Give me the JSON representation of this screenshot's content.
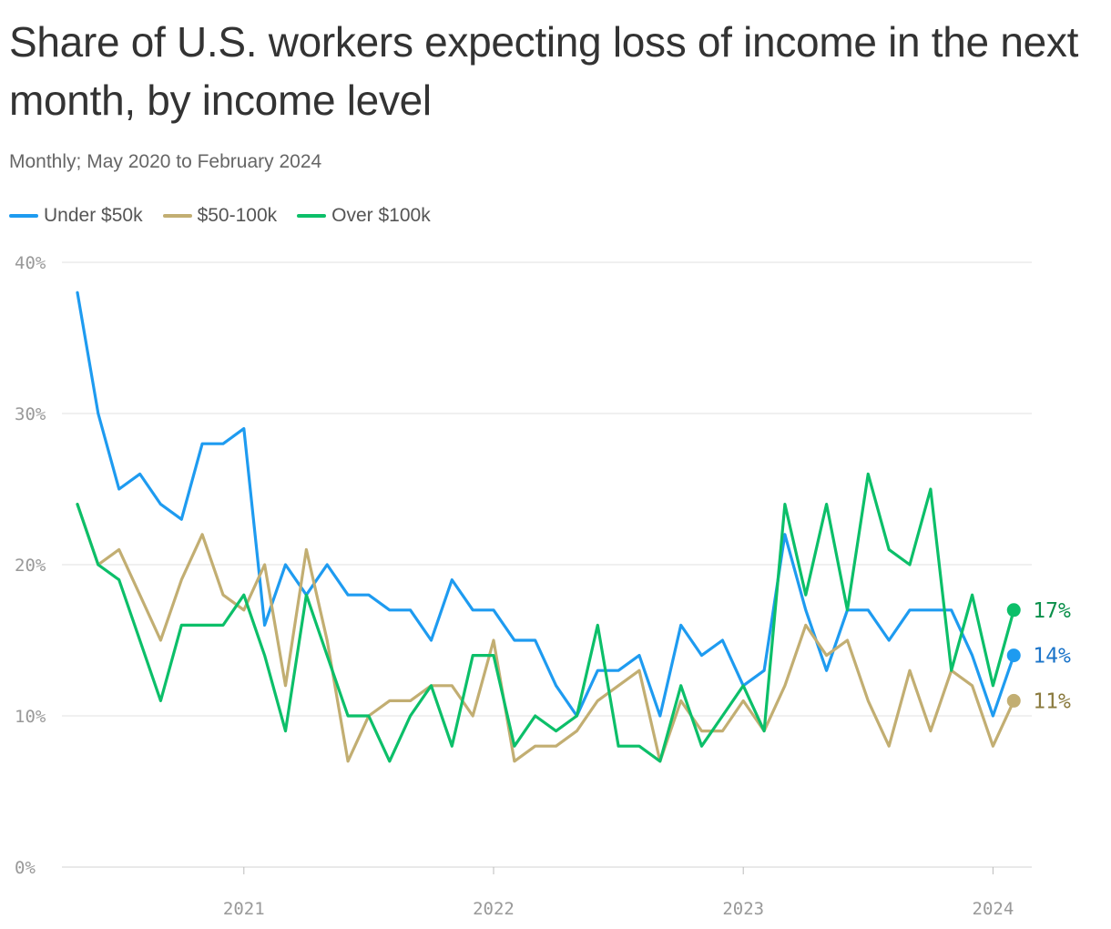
{
  "header": {
    "title": "Share of U.S. workers expecting loss of income in the next month, by income level",
    "subtitle": "Monthly; May 2020 to February 2024"
  },
  "colors": {
    "under_50k": "#1e9bf0",
    "50_100k": "#c2ae72",
    "over_100k": "#0cbf69",
    "label_under_50k": "#1b74c9",
    "label_50_100k": "#8a7a3e",
    "label_over_100k": "#0a8f4a",
    "grid": "#e2e2e2",
    "tick": "#999999"
  },
  "chart_data": {
    "type": "line",
    "title": "Share of U.S. workers expecting loss of income in the next month, by income level",
    "subtitle": "Monthly; May 2020 to February 2024",
    "xlabel": "",
    "ylabel": "",
    "x_range": [
      "2020-05",
      "2024-02"
    ],
    "ylim": [
      0,
      40
    ],
    "y_ticks": [
      0,
      10,
      20,
      30,
      40
    ],
    "y_tick_labels": [
      "0%",
      "10%",
      "20%",
      "30%",
      "40%"
    ],
    "x_ticks": [
      "2021",
      "2022",
      "2023",
      "2024"
    ],
    "grid": true,
    "legend_placement": "top-left",
    "x": [
      "2020-05",
      "2020-06",
      "2020-07",
      "2020-08",
      "2020-09",
      "2020-10",
      "2020-11",
      "2020-12",
      "2021-01",
      "2021-02",
      "2021-03",
      "2021-04",
      "2021-05",
      "2021-06",
      "2021-07",
      "2021-08",
      "2021-09",
      "2021-10",
      "2021-11",
      "2021-12",
      "2022-01",
      "2022-02",
      "2022-03",
      "2022-04",
      "2022-05",
      "2022-06",
      "2022-07",
      "2022-08",
      "2022-09",
      "2022-10",
      "2022-11",
      "2022-12",
      "2023-01",
      "2023-02",
      "2023-03",
      "2023-04",
      "2023-05",
      "2023-06",
      "2023-07",
      "2023-08",
      "2023-09",
      "2023-10",
      "2023-11",
      "2023-12",
      "2024-01",
      "2024-02"
    ],
    "series": [
      {
        "name": "Under $50k",
        "key": "under_50k",
        "end_label": "14%",
        "values": [
          38,
          30,
          25,
          26,
          24,
          23,
          28,
          28,
          29,
          16,
          20,
          18,
          20,
          18,
          18,
          17,
          17,
          15,
          19,
          17,
          17,
          15,
          15,
          12,
          10,
          13,
          13,
          14,
          10,
          16,
          14,
          15,
          12,
          13,
          22,
          17,
          13,
          17,
          17,
          15,
          17,
          17,
          17,
          14,
          10,
          14
        ]
      },
      {
        "name": "$50-100k",
        "key": "50_100k",
        "end_label": "11%",
        "values": [
          24,
          20,
          21,
          18,
          15,
          19,
          22,
          18,
          17,
          20,
          12,
          21,
          15,
          7,
          10,
          11,
          11,
          12,
          12,
          10,
          15,
          7,
          8,
          8,
          9,
          11,
          12,
          13,
          7,
          11,
          9,
          9,
          11,
          9,
          12,
          16,
          14,
          15,
          11,
          8,
          13,
          9,
          13,
          12,
          8,
          11
        ]
      },
      {
        "name": "Over $100k",
        "key": "over_100k",
        "end_label": "17%",
        "values": [
          24,
          20,
          19,
          15,
          11,
          16,
          16,
          16,
          18,
          14,
          9,
          18,
          14,
          10,
          10,
          7,
          10,
          12,
          8,
          14,
          14,
          8,
          10,
          9,
          10,
          16,
          8,
          8,
          7,
          12,
          8,
          10,
          12,
          9,
          24,
          18,
          24,
          17,
          26,
          21,
          20,
          25,
          13,
          18,
          12,
          17
        ]
      }
    ]
  }
}
